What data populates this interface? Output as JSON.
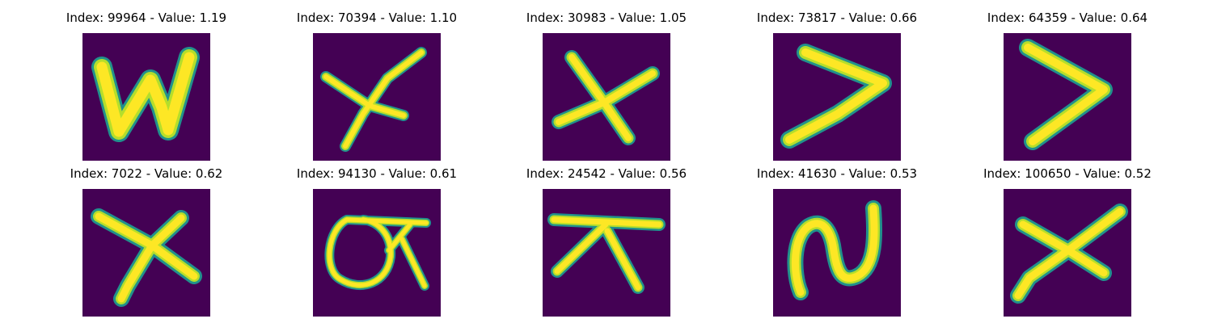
{
  "colors": {
    "background": "#440154",
    "stroke_core": "#fde725",
    "stroke_mid": "#b5de2b",
    "stroke_edge": "#21918c"
  },
  "panels": [
    {
      "title": "Index: 99964 - Value: 1.19",
      "icon": "glyph-n-icon"
    },
    {
      "title": "Index: 70394 - Value: 1.10",
      "icon": "glyph-x-icon"
    },
    {
      "title": "Index: 30983 - Value: 1.05",
      "icon": "glyph-star-icon"
    },
    {
      "title": "Index: 73817 - Value: 0.66",
      "icon": "glyph-greater-than-icon"
    },
    {
      "title": "Index: 64359 - Value: 0.64",
      "icon": "glyph-greater-than-icon"
    },
    {
      "title": "Index: 7022 - Value: 0.62",
      "icon": "glyph-x-icon"
    },
    {
      "title": "Index: 94130 - Value: 0.61",
      "icon": "glyph-circle-x-icon"
    },
    {
      "title": "Index: 24542 - Value: 0.56",
      "icon": "glyph-t-icon"
    },
    {
      "title": "Index: 41630 - Value: 0.53",
      "icon": "glyph-n-icon"
    },
    {
      "title": "Index: 100650 - Value: 0.52",
      "icon": "glyph-x-icon"
    }
  ]
}
